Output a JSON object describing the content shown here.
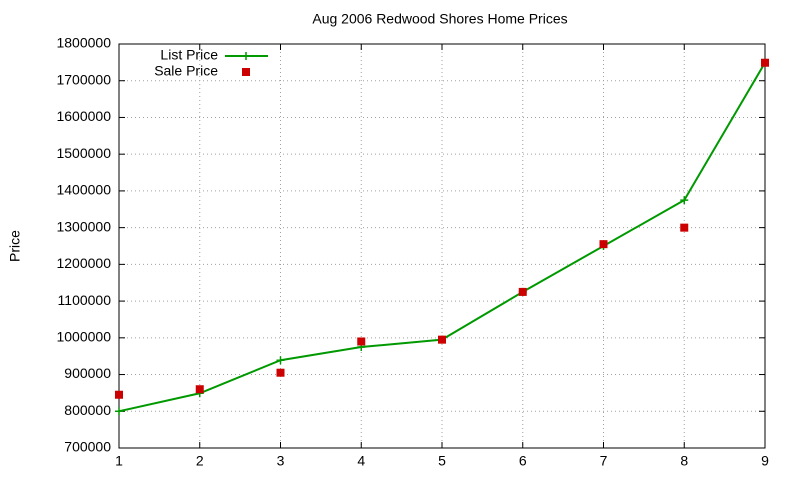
{
  "chart_data": {
    "type": "line",
    "title": "Aug 2006 Redwood Shores Home Prices",
    "y_label": "Price",
    "x": [
      1,
      2,
      3,
      4,
      5,
      6,
      7,
      8,
      9
    ],
    "series": [
      {
        "name": "List Price",
        "color": "#009900",
        "style": "linespoints",
        "values": [
          800000,
          849000,
          939000,
          975000,
          995000,
          1125000,
          1250000,
          1375000,
          1749000
        ]
      },
      {
        "name": "Sale Price",
        "color": "#cc0000",
        "style": "points",
        "values": [
          845000,
          860000,
          905000,
          990000,
          995000,
          1125000,
          1255000,
          1300000,
          1749000
        ]
      }
    ],
    "xlim": [
      1,
      9
    ],
    "xticks": [
      1,
      2,
      3,
      4,
      5,
      6,
      7,
      8,
      9
    ],
    "ylim": [
      700000,
      1800000
    ],
    "yticks": [
      700000,
      800000,
      900000,
      1000000,
      1100000,
      1200000,
      1300000,
      1400000,
      1500000,
      1600000,
      1700000,
      1800000
    ],
    "grid": true,
    "legend": "top-left"
  }
}
